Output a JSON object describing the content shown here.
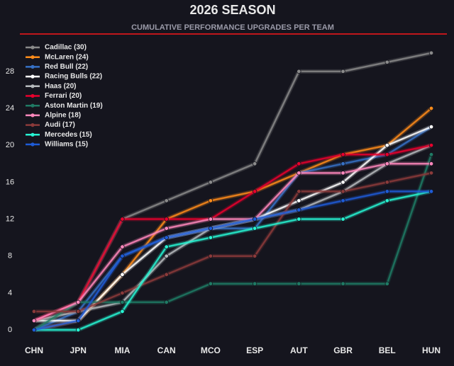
{
  "chart_data": {
    "type": "line",
    "title": "2026 SEASON",
    "subtitle": "CUMULATIVE PERFORMANCE UPGRADES PER TEAM",
    "categories": [
      "CHN",
      "JPN",
      "MIA",
      "CAN",
      "MCO",
      "ESP",
      "AUT",
      "GBR",
      "BEL",
      "HUN"
    ],
    "ylim": [
      -1.5,
      30.5
    ],
    "yticks": [
      0,
      4,
      8,
      12,
      16,
      20,
      24,
      28
    ],
    "legend": "upper-left",
    "series": [
      {
        "name": "Cadillac (30)",
        "color": "#8a8a8a",
        "values": [
          0,
          3,
          12,
          14,
          16,
          18,
          28,
          28,
          29,
          30
        ]
      },
      {
        "name": "McLaren (24)",
        "color": "#ff8c1a",
        "values": [
          0,
          1,
          6,
          12,
          14,
          15,
          17,
          19,
          20,
          24
        ]
      },
      {
        "name": "Red Bull (22)",
        "color": "#3671c6",
        "values": [
          0,
          2,
          8,
          10,
          11,
          11,
          17,
          18,
          19,
          22
        ]
      },
      {
        "name": "Racing Bulls (22)",
        "color": "#ffffff",
        "values": [
          1,
          1,
          6,
          10,
          11,
          12,
          14,
          16,
          20,
          22
        ]
      },
      {
        "name": "Haas (20)",
        "color": "#b6babd",
        "values": [
          1,
          2,
          3,
          8,
          11,
          12,
          13,
          15,
          18,
          20
        ]
      },
      {
        "name": "Ferrari (20)",
        "color": "#e8002d",
        "values": [
          1,
          3,
          12,
          12,
          12,
          15,
          18,
          19,
          19,
          20
        ]
      },
      {
        "name": "Aston Martin (19)",
        "color": "#1f7a64",
        "values": [
          0,
          3,
          3,
          3,
          5,
          5,
          5,
          5,
          5,
          19
        ]
      },
      {
        "name": "Alpine (18)",
        "color": "#ff87bc",
        "values": [
          1,
          3,
          9,
          11,
          12,
          12,
          17,
          17,
          18,
          18
        ]
      },
      {
        "name": "Audi (17)",
        "color": "#8b3a3a",
        "values": [
          2,
          2,
          4,
          6,
          8,
          8,
          15,
          15,
          16,
          17
        ]
      },
      {
        "name": "Mercedes (15)",
        "color": "#27f4d2",
        "values": [
          0,
          0,
          2,
          9,
          10,
          11,
          12,
          12,
          14,
          15
        ]
      },
      {
        "name": "Williams (15)",
        "color": "#1e5bd6",
        "values": [
          0,
          1,
          8,
          10,
          11,
          12,
          13,
          14,
          15,
          15
        ]
      }
    ]
  }
}
